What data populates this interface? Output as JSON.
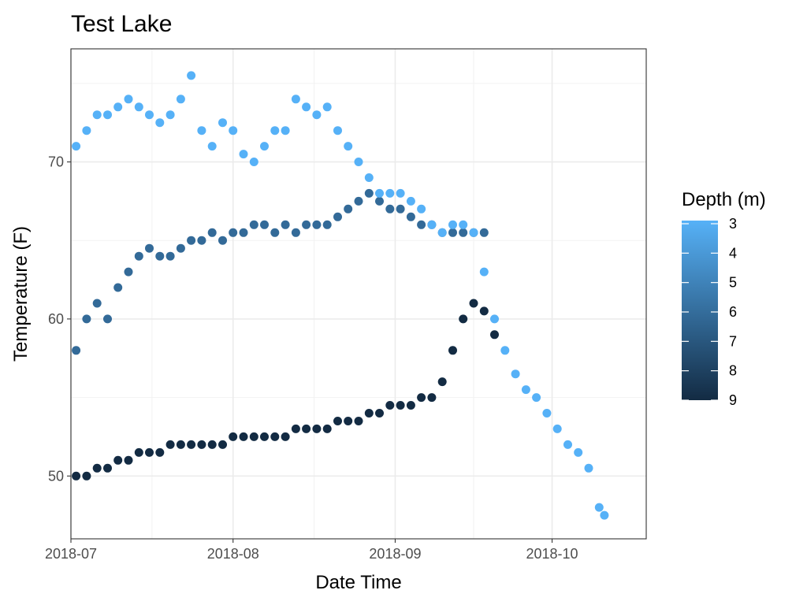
{
  "chart_data": {
    "type": "scatter",
    "title": "Test Lake",
    "xlabel": "Date Time",
    "ylabel": "Temperature (F)",
    "xlim": [
      "2018-07-01",
      "2018-10-19"
    ],
    "ylim": [
      46.0,
      77.2
    ],
    "x_ticks": [
      "2018-07-01",
      "2018-08-01",
      "2018-09-01",
      "2018-10-01"
    ],
    "x_tick_labels": [
      "2018-07",
      "2018-08",
      "2018-09",
      "2018-10"
    ],
    "y_ticks": [
      50,
      60,
      70
    ],
    "y_tick_labels": [
      "50",
      "60",
      "70"
    ],
    "grid": true,
    "legend": {
      "title": "Depth (m)",
      "placement": "right",
      "type": "colorbar",
      "range": [
        3,
        9
      ],
      "ticks": [
        3,
        4,
        5,
        6,
        7,
        8,
        9
      ],
      "tick_labels": [
        "3",
        "4",
        "5",
        "6",
        "7",
        "8",
        "9"
      ],
      "color_low_depth": "#56B1F7",
      "color_high_depth": "#132B43"
    },
    "series": [
      {
        "depth": 3,
        "color": "#56B1F7",
        "x": [
          "2018-07-02",
          "2018-07-04",
          "2018-07-06",
          "2018-07-08",
          "2018-07-10",
          "2018-07-12",
          "2018-07-14",
          "2018-07-16",
          "2018-07-18",
          "2018-07-20",
          "2018-07-22",
          "2018-07-24",
          "2018-07-26",
          "2018-07-28",
          "2018-07-30",
          "2018-08-01",
          "2018-08-03",
          "2018-08-05",
          "2018-08-07",
          "2018-08-09",
          "2018-08-11",
          "2018-08-13",
          "2018-08-15",
          "2018-08-17",
          "2018-08-19",
          "2018-08-21",
          "2018-08-23",
          "2018-08-25",
          "2018-08-27",
          "2018-08-29",
          "2018-08-31",
          "2018-09-02",
          "2018-09-04",
          "2018-09-06",
          "2018-09-08",
          "2018-09-10",
          "2018-09-12",
          "2018-09-14",
          "2018-09-16",
          "2018-09-18",
          "2018-09-20",
          "2018-09-22",
          "2018-09-24",
          "2018-09-26",
          "2018-09-28",
          "2018-09-30",
          "2018-10-02",
          "2018-10-04",
          "2018-10-06",
          "2018-10-08",
          "2018-10-10",
          "2018-10-11"
        ],
        "y": [
          71,
          72,
          73,
          73,
          73.5,
          74,
          73.5,
          73,
          72.5,
          73,
          74,
          75.5,
          72,
          71,
          72.5,
          72,
          70.5,
          70,
          71,
          72,
          72,
          74,
          73.5,
          73,
          73.5,
          72,
          71,
          70,
          69,
          68,
          68,
          68,
          67.5,
          67,
          66,
          65.5,
          66,
          66,
          65.5,
          63,
          60,
          58,
          56.5,
          55.5,
          55,
          54,
          53,
          52,
          51.5,
          50.5,
          48,
          47.5
        ]
      },
      {
        "depth": 6,
        "color": "#336A98",
        "x": [
          "2018-07-02",
          "2018-07-04",
          "2018-07-06",
          "2018-07-08",
          "2018-07-10",
          "2018-07-12",
          "2018-07-14",
          "2018-07-16",
          "2018-07-18",
          "2018-07-20",
          "2018-07-22",
          "2018-07-24",
          "2018-07-26",
          "2018-07-28",
          "2018-07-30",
          "2018-08-01",
          "2018-08-03",
          "2018-08-05",
          "2018-08-07",
          "2018-08-09",
          "2018-08-11",
          "2018-08-13",
          "2018-08-15",
          "2018-08-17",
          "2018-08-19",
          "2018-08-21",
          "2018-08-23",
          "2018-08-25",
          "2018-08-27",
          "2018-08-29",
          "2018-08-31",
          "2018-09-02",
          "2018-09-04",
          "2018-09-06",
          "2018-09-08",
          "2018-09-10",
          "2018-09-12",
          "2018-09-14",
          "2018-09-16",
          "2018-09-18"
        ],
        "y": [
          58,
          60,
          61,
          60,
          62,
          63,
          64,
          64.5,
          64,
          64,
          64.5,
          65,
          65,
          65.5,
          65,
          65.5,
          65.5,
          66,
          66,
          65.5,
          66,
          65.5,
          66,
          66,
          66,
          66.5,
          67,
          67.5,
          68,
          67.5,
          67,
          67,
          66.5,
          66,
          66,
          65.5,
          65.5,
          65.5,
          65.5,
          65.5
        ]
      },
      {
        "depth": 9,
        "color": "#132B43",
        "x": [
          "2018-07-02",
          "2018-07-04",
          "2018-07-06",
          "2018-07-08",
          "2018-07-10",
          "2018-07-12",
          "2018-07-14",
          "2018-07-16",
          "2018-07-18",
          "2018-07-20",
          "2018-07-22",
          "2018-07-24",
          "2018-07-26",
          "2018-07-28",
          "2018-07-30",
          "2018-08-01",
          "2018-08-03",
          "2018-08-05",
          "2018-08-07",
          "2018-08-09",
          "2018-08-11",
          "2018-08-13",
          "2018-08-15",
          "2018-08-17",
          "2018-08-19",
          "2018-08-21",
          "2018-08-23",
          "2018-08-25",
          "2018-08-27",
          "2018-08-29",
          "2018-08-31",
          "2018-09-02",
          "2018-09-04",
          "2018-09-06",
          "2018-09-08",
          "2018-09-10",
          "2018-09-12",
          "2018-09-14",
          "2018-09-16",
          "2018-09-18",
          "2018-09-20"
        ],
        "y": [
          50,
          50,
          50.5,
          50.5,
          51,
          51,
          51.5,
          51.5,
          51.5,
          52,
          52,
          52,
          52,
          52,
          52,
          52.5,
          52.5,
          52.5,
          52.5,
          52.5,
          52.5,
          53,
          53,
          53,
          53,
          53.5,
          53.5,
          53.5,
          54,
          54,
          54.5,
          54.5,
          54.5,
          55,
          55,
          56,
          58,
          60,
          61,
          60.5,
          59
        ]
      }
    ]
  }
}
